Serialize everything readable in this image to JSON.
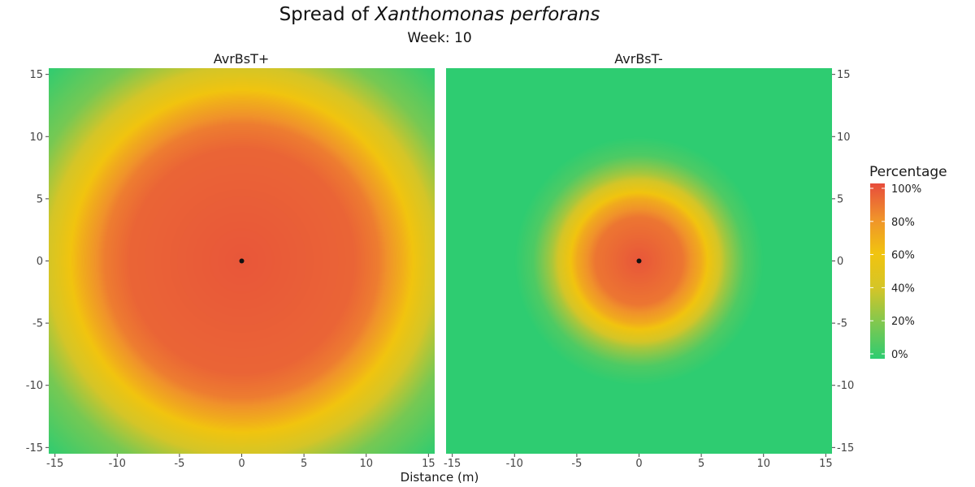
{
  "chart_data": {
    "type": "heatmap",
    "title": "Spread of",
    "title_italic": "Xanthomonas perforans",
    "subtitle": "Week: 10",
    "xlabel": "Distance (m)",
    "ylabel": "",
    "xlim": [
      -15.5,
      15.5
    ],
    "ylim": [
      -15.5,
      15.5
    ],
    "x_ticks": [
      -15,
      -10,
      -5,
      0,
      5,
      10,
      15
    ],
    "y_ticks": [
      -15,
      -10,
      -5,
      0,
      5,
      10,
      15
    ],
    "y_tick_labels": [
      "-15",
      "-10",
      "-5",
      "0",
      "5",
      "10",
      "15"
    ],
    "grid": false,
    "legend": {
      "title": "Percentage",
      "placement": "right",
      "ticks": [
        0,
        20,
        40,
        60,
        80,
        100
      ],
      "tick_labels": [
        "0%",
        "20%",
        "40%",
        "60%",
        "80%",
        "100%"
      ]
    },
    "colorscale": [
      [
        0,
        "#2ecc71"
      ],
      [
        0.2,
        "#7ec850"
      ],
      [
        0.4,
        "#d4c528"
      ],
      [
        0.6,
        "#f1c40f"
      ],
      [
        0.8,
        "#f0922b"
      ],
      [
        1,
        "#e74c3c"
      ]
    ],
    "panels": [
      {
        "name": "AvrBsT+",
        "source": {
          "x": 0,
          "y": 0
        },
        "profile": {
          "radial_distance_m": [
            0,
            9,
            11,
            13,
            14.5,
            16,
            18,
            22
          ],
          "percentage": [
            97,
            93,
            86,
            68,
            52,
            36,
            18,
            0
          ]
        }
      },
      {
        "name": "AvrBsT-",
        "source": {
          "x": 0,
          "y": 0
        },
        "profile": {
          "radial_distance_m": [
            0,
            3.5,
            5,
            6,
            7,
            8.5,
            10
          ],
          "percentage": [
            97,
            88,
            70,
            50,
            30,
            8,
            0
          ]
        }
      }
    ]
  }
}
